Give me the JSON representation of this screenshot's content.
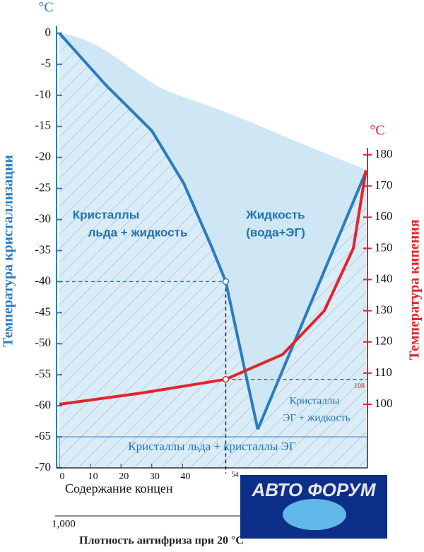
{
  "chart_data": {
    "type": "line",
    "y_unit": "°C",
    "y2_unit": "°C",
    "ylabel": "Температура кристаллизации",
    "y2label": "Температура кипения",
    "xlabel": "Содержание концен",
    "density_tick": "1,000",
    "density_label": "Плотность антифриза при 20 °С",
    "watermark": "АВТО ФОРУМ",
    "xlim": [
      0,
      100
    ],
    "xticks": [
      0,
      10,
      20,
      30,
      40
    ],
    "ylim": [
      -70,
      0
    ],
    "yticks": [
      0,
      -5,
      -10,
      -15,
      -20,
      -25,
      -30,
      -35,
      -40,
      -45,
      -50,
      -55,
      -60,
      -65,
      -70
    ],
    "y2lim": [
      79.6,
      219
    ],
    "y2ticks": [
      100,
      110,
      120,
      130,
      140,
      150,
      160,
      170,
      180
    ],
    "annotations": [
      "Кристаллы",
      "льда + жидкость",
      "Жидкость",
      "(вода+ЭГ)",
      "Кристаллы",
      "ЭГ + жидкость",
      "Кристаллы льда + кристаллы ЭГ"
    ],
    "band": [
      -70,
      -65
    ],
    "guide_x": 54,
    "guide_y": -40,
    "guide_y2": 108,
    "series": [
      {
        "color": "#2a7cc0",
        "x": [
          0,
          15,
          30,
          40.4,
          49.5,
          54,
          60,
          64.4
        ],
        "values": [
          0,
          -8.3,
          -15.7,
          -24.2,
          -34.5,
          -40,
          -53.8,
          -63.8
        ]
      },
      {
        "color": "#2a7cc0",
        "x": [
          64.4,
          99.5
        ],
        "values": [
          -63.8,
          -22.3
        ]
      },
      {
        "color": "#e3232c",
        "axis": "y2",
        "x": [
          0,
          26.6,
          54,
          72.5,
          86,
          95.4,
          99.5
        ],
        "values": [
          100,
          103.6,
          108,
          116,
          130,
          150,
          175
        ]
      }
    ]
  }
}
